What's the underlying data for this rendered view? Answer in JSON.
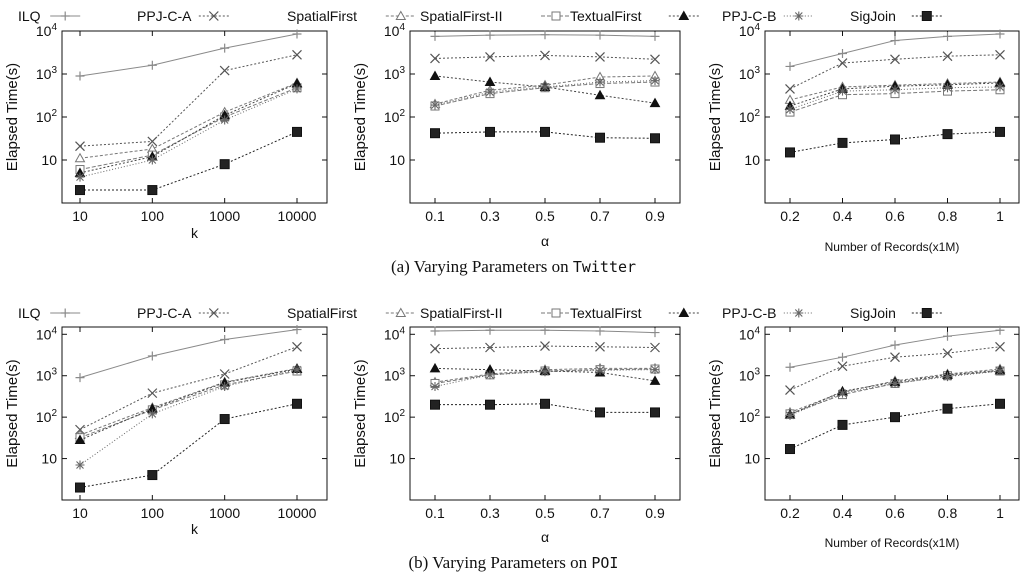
{
  "legend": {
    "items": [
      {
        "name": "ILQ",
        "marker": "plus",
        "color": "#8a8a8a",
        "dash": ""
      },
      {
        "name": "PPJ-C-A",
        "marker": "x",
        "color": "#555555",
        "dash": "2,2"
      },
      {
        "name": "SpatialFirst",
        "marker": "triangle-open",
        "color": "#777777",
        "dash": "3,2"
      },
      {
        "name": "SpatialFirst-II",
        "marker": "square-open",
        "color": "#777777",
        "dash": "4,2"
      },
      {
        "name": "TextualFirst",
        "marker": "triangle-filled",
        "color": "#444444",
        "dash": "2,2"
      },
      {
        "name": "PPJ-C-B",
        "marker": "star",
        "color": "#666666",
        "dash": "1,2"
      },
      {
        "name": "SigJoin",
        "marker": "square-filled",
        "color": "#222222",
        "dash": "2,2"
      }
    ]
  },
  "captions": {
    "a_prefix": "(a) Varying Parameters on ",
    "a_dataset": "Twitter",
    "b_prefix": "(b) Varying Parameters on ",
    "b_dataset": "POI"
  },
  "chart_data": [
    {
      "type": "line",
      "yscale": "log",
      "ylim": [
        1,
        10000
      ],
      "ylabel": "Elapsed Time(s)",
      "xlabel": "k",
      "categories": [
        "10",
        "100",
        "1000",
        "10000"
      ],
      "yticks": [
        "10",
        "10^2",
        "10^3",
        "10^4"
      ],
      "series": [
        {
          "name": "ILQ",
          "values": [
            900,
            1600,
            4000,
            8500
          ]
        },
        {
          "name": "PPJ-C-A",
          "values": [
            21,
            27,
            1200,
            2800
          ]
        },
        {
          "name": "SpatialFirst",
          "values": [
            11,
            18,
            130,
            620
          ]
        },
        {
          "name": "SpatialFirst-II",
          "values": [
            6,
            13,
            100,
            480
          ]
        },
        {
          "name": "TextualFirst",
          "values": [
            5,
            12,
            110,
            600
          ]
        },
        {
          "name": "PPJ-C-B",
          "values": [
            4,
            10,
            85,
            450
          ]
        },
        {
          "name": "SigJoin",
          "values": [
            2,
            2,
            8,
            45
          ]
        }
      ]
    },
    {
      "type": "line",
      "yscale": "log",
      "ylim": [
        1,
        10000
      ],
      "ylabel": "Elapsed Time(s)",
      "xlabel": "α",
      "categories": [
        "0.1",
        "0.3",
        "0.5",
        "0.7",
        "0.9"
      ],
      "yticks": [
        "10",
        "10^2",
        "10^3",
        "10^4"
      ],
      "series": [
        {
          "name": "ILQ",
          "values": [
            7500,
            8000,
            8200,
            8000,
            7500
          ]
        },
        {
          "name": "PPJ-C-A",
          "values": [
            2300,
            2500,
            2700,
            2500,
            2200
          ]
        },
        {
          "name": "SpatialFirst",
          "values": [
            200,
            420,
            550,
            850,
            900
          ]
        },
        {
          "name": "SpatialFirst-II",
          "values": [
            180,
            350,
            480,
            600,
            650
          ]
        },
        {
          "name": "TextualFirst",
          "values": [
            900,
            650,
            500,
            320,
            210
          ]
        },
        {
          "name": "PPJ-C-B",
          "values": [
            190,
            380,
            500,
            650,
            700
          ]
        },
        {
          "name": "SigJoin",
          "values": [
            42,
            45,
            45,
            33,
            32
          ]
        }
      ]
    },
    {
      "type": "line",
      "yscale": "log",
      "ylim": [
        1,
        10000
      ],
      "ylabel": "Elapsed Time(s)",
      "xlabel": "Number of Records(x1M)",
      "categories": [
        "0.2",
        "0.4",
        "0.6",
        "0.8",
        "1"
      ],
      "yticks": [
        "10",
        "10^2",
        "10^3",
        "10^4"
      ],
      "series": [
        {
          "name": "ILQ",
          "values": [
            1500,
            3000,
            6000,
            7500,
            8500
          ]
        },
        {
          "name": "PPJ-C-A",
          "values": [
            450,
            1800,
            2200,
            2600,
            2800
          ]
        },
        {
          "name": "SpatialFirst",
          "values": [
            250,
            500,
            550,
            600,
            650
          ]
        },
        {
          "name": "SpatialFirst-II",
          "values": [
            130,
            330,
            350,
            400,
            430
          ]
        },
        {
          "name": "TextualFirst",
          "values": [
            180,
            450,
            520,
            560,
            620
          ]
        },
        {
          "name": "PPJ-C-B",
          "values": [
            150,
            400,
            430,
            480,
            500
          ]
        },
        {
          "name": "SigJoin",
          "values": [
            15,
            25,
            30,
            40,
            45
          ]
        }
      ]
    },
    {
      "type": "line",
      "yscale": "log",
      "ylim": [
        1,
        15000
      ],
      "ylabel": "Elapsed Time(s)",
      "xlabel": "k",
      "categories": [
        "10",
        "100",
        "1000",
        "10000"
      ],
      "yticks": [
        "10",
        "10^2",
        "10^3",
        "10^4"
      ],
      "series": [
        {
          "name": "ILQ",
          "values": [
            900,
            3000,
            7500,
            13000
          ]
        },
        {
          "name": "PPJ-C-A",
          "values": [
            50,
            380,
            1100,
            5000
          ]
        },
        {
          "name": "SpatialFirst",
          "values": [
            37,
            170,
            700,
            1500
          ]
        },
        {
          "name": "SpatialFirst-II",
          "values": [
            32,
            150,
            600,
            1300
          ]
        },
        {
          "name": "TextualFirst",
          "values": [
            28,
            160,
            680,
            1450
          ]
        },
        {
          "name": "PPJ-C-B",
          "values": [
            7,
            120,
            550,
            1400
          ]
        },
        {
          "name": "SigJoin",
          "values": [
            2,
            4,
            90,
            210
          ]
        }
      ]
    },
    {
      "type": "line",
      "yscale": "log",
      "ylim": [
        1,
        15000
      ],
      "ylabel": "Elapsed Time(s)",
      "xlabel": "α",
      "categories": [
        "0.1",
        "0.3",
        "0.5",
        "0.7",
        "0.9"
      ],
      "yticks": [
        "10",
        "10^2",
        "10^3",
        "10^4"
      ],
      "series": [
        {
          "name": "ILQ",
          "values": [
            12000,
            12500,
            12500,
            12000,
            11000
          ]
        },
        {
          "name": "PPJ-C-A",
          "values": [
            4500,
            4800,
            5200,
            5000,
            4800
          ]
        },
        {
          "name": "SpatialFirst",
          "values": [
            700,
            1100,
            1400,
            1500,
            1500
          ]
        },
        {
          "name": "SpatialFirst-II",
          "values": [
            650,
            1050,
            1300,
            1400,
            1450
          ]
        },
        {
          "name": "TextualFirst",
          "values": [
            1500,
            1400,
            1300,
            1200,
            750
          ]
        },
        {
          "name": "PPJ-C-B",
          "values": [
            550,
            1050,
            1250,
            1350,
            1400
          ]
        },
        {
          "name": "SigJoin",
          "values": [
            200,
            200,
            210,
            130,
            130
          ]
        }
      ]
    },
    {
      "type": "line",
      "yscale": "log",
      "ylim": [
        1,
        15000
      ],
      "ylabel": "Elapsed Time(s)",
      "xlabel": "Number of Records(x1M)",
      "categories": [
        "0.2",
        "0.4",
        "0.6",
        "0.8",
        "1"
      ],
      "yticks": [
        "10",
        "10^2",
        "10^3",
        "10^4"
      ],
      "series": [
        {
          "name": "ILQ",
          "values": [
            1600,
            2800,
            5500,
            9000,
            12500
          ]
        },
        {
          "name": "PPJ-C-A",
          "values": [
            450,
            1700,
            2800,
            3500,
            5000
          ]
        },
        {
          "name": "SpatialFirst",
          "values": [
            130,
            400,
            750,
            1100,
            1450
          ]
        },
        {
          "name": "SpatialFirst-II",
          "values": [
            120,
            350,
            650,
            1000,
            1300
          ]
        },
        {
          "name": "TextualFirst",
          "values": [
            115,
            420,
            700,
            1050,
            1350
          ]
        },
        {
          "name": "PPJ-C-B",
          "values": [
            110,
            380,
            650,
            950,
            1300
          ]
        },
        {
          "name": "SigJoin",
          "values": [
            17,
            65,
            100,
            160,
            210
          ]
        }
      ]
    }
  ]
}
